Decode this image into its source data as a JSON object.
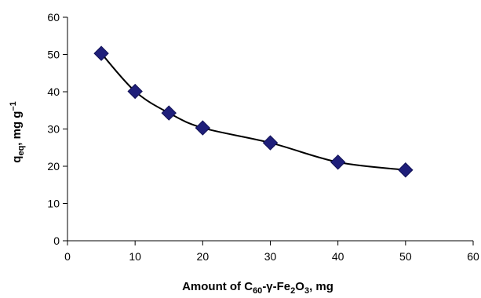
{
  "chart_data": {
    "type": "line",
    "x": [
      5,
      10,
      15,
      20,
      30,
      40,
      50
    ],
    "series": [
      {
        "values": [
          50.3,
          40.1,
          34.3,
          30.3,
          26.3,
          21.1,
          19.0
        ],
        "color": "#1f1f7a",
        "line_color": "#000000",
        "marker": "diamond",
        "smooth": true
      }
    ],
    "xlim": [
      0,
      60
    ],
    "ylim": [
      0,
      60
    ],
    "x_ticks": [
      "0",
      "10",
      "20",
      "30",
      "40",
      "50",
      "60"
    ],
    "y_ticks": [
      "0",
      "10",
      "20",
      "30",
      "40",
      "50",
      "60"
    ],
    "xlabel": {
      "prefix": "Amount of C",
      "sub1": "60",
      "mid": "-γ-Fe",
      "sub2": "2",
      "mid2": "O",
      "sub3": "3",
      "suffix": ", mg"
    },
    "ylabel": {
      "prefix": "q",
      "sub": "eq",
      "middle": ", mg g",
      "sup": "–1"
    },
    "grid": false,
    "legend": "none"
  }
}
